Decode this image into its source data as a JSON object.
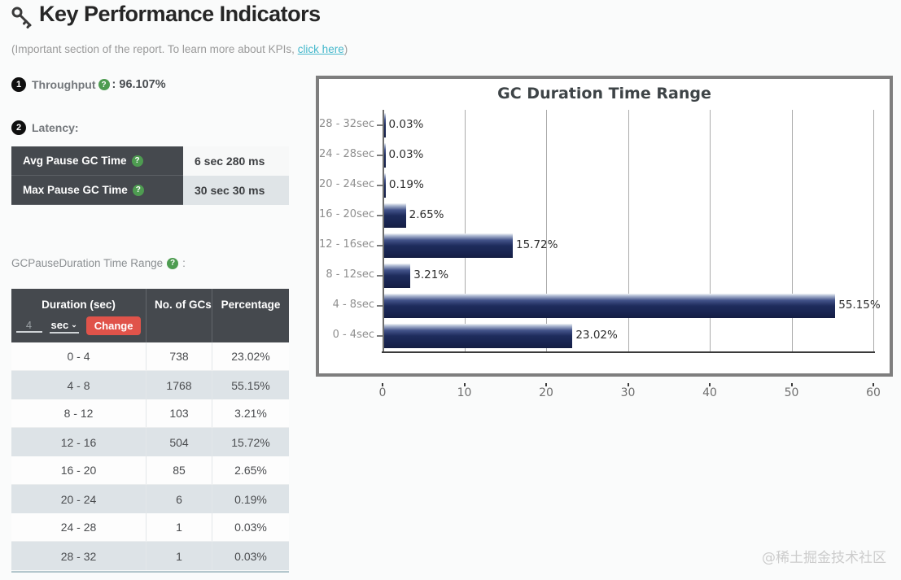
{
  "header": {
    "title": "Key Performance Indicators",
    "subtitle_prefix": "(Important section of the report. To learn more about KPIs, ",
    "subtitle_link": "click here",
    "subtitle_suffix": ")"
  },
  "kpis": {
    "throughput": {
      "index": "1",
      "label": "Throughput",
      "value": ": 96.107%"
    },
    "latency": {
      "index": "2",
      "label": "Latency:",
      "rows": [
        {
          "label": "Avg Pause GC Time",
          "value": "6 sec 280 ms"
        },
        {
          "label": "Max Pause GC Time",
          "value": "30 sec 30 ms"
        }
      ]
    }
  },
  "duration_section": {
    "label": "GCPauseDuration Time Range",
    "label_suffix": ":",
    "table": {
      "columns": [
        "Duration (sec)",
        "No. of GCs",
        "Percentage"
      ],
      "controls": {
        "input_value": "4",
        "unit_select": "sec",
        "chevron": "⌄",
        "change_button": "Change"
      },
      "rows": [
        [
          "0 - 4",
          "738",
          "23.02%"
        ],
        [
          "4 - 8",
          "1768",
          "55.15%"
        ],
        [
          "8 - 12",
          "103",
          "3.21%"
        ],
        [
          "12 - 16",
          "504",
          "15.72%"
        ],
        [
          "16 - 20",
          "85",
          "2.65%"
        ],
        [
          "20 - 24",
          "6",
          "0.19%"
        ],
        [
          "24 - 28",
          "1",
          "0.03%"
        ],
        [
          "28 - 32",
          "1",
          "0.03%"
        ]
      ]
    }
  },
  "chart_data": {
    "type": "bar",
    "orientation": "horizontal",
    "title": "GC Duration Time Range",
    "categories": [
      "28 - 32sec",
      "24 - 28sec",
      "20 - 24sec",
      "16 - 20sec",
      "12 - 16sec",
      "8 - 12sec",
      "4 - 8sec",
      "0 - 4sec"
    ],
    "values": [
      0.03,
      0.03,
      0.19,
      2.65,
      15.72,
      3.21,
      55.15,
      23.02
    ],
    "labels": [
      "0.03%",
      "0.03%",
      "0.19%",
      "2.65%",
      "15.72%",
      "3.21%",
      "55.15%",
      "23.02%"
    ],
    "xlabel": "",
    "ylabel": "",
    "xlim": [
      0,
      60
    ],
    "xticks": [
      0,
      10,
      20,
      30,
      40,
      50,
      60
    ],
    "grid": true,
    "legend": false,
    "bar_color": "#1c2a58"
  },
  "icons": {
    "help": "?"
  },
  "colors": {
    "accent_link": "#45b8cc",
    "header_dark": "#45494e",
    "row_alt": "#dde3e7",
    "change_button": "#e0534a",
    "help_green": "#4e9c51",
    "bar_navy": "#1c2a58"
  },
  "watermark": "@稀土掘金技术社区"
}
